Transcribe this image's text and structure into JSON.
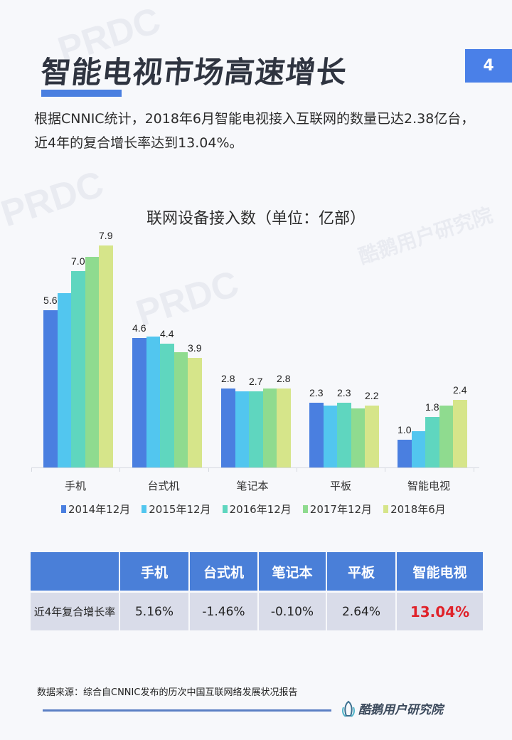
{
  "header": {
    "title": "智能电视市场高速增长",
    "page_number": "4"
  },
  "intro": {
    "text": "根据CNNIC统计，2018年6月智能电视接入互联网的数量已达2.38亿台，近4年的复合增长率达到13.04%。"
  },
  "watermarks": [
    "PRDC",
    "酷鹅用户研究院"
  ],
  "chart_data": {
    "type": "bar",
    "title": "联网设备接入数（单位：亿部）",
    "xlabel": "",
    "ylabel": "亿部",
    "ylim": [
      0,
      8.3
    ],
    "grid": false,
    "legend_position": "bottom",
    "categories": [
      "手机",
      "台式机",
      "笔记本",
      "平板",
      "智能电视"
    ],
    "series": [
      {
        "name": "2014年12月",
        "color": "#4a7fe0",
        "values": [
          5.6,
          4.6,
          2.8,
          2.3,
          1.0
        ],
        "labeled": [
          true,
          true,
          true,
          true,
          true
        ]
      },
      {
        "name": "2015年12月",
        "color": "#52c6ef",
        "values": [
          6.2,
          4.65,
          2.7,
          2.2,
          1.3
        ],
        "labeled": [
          false,
          false,
          false,
          false,
          false
        ]
      },
      {
        "name": "2016年12月",
        "color": "#5fd6bf",
        "values": [
          7.0,
          4.4,
          2.7,
          2.3,
          1.8
        ],
        "labeled": [
          true,
          true,
          true,
          true,
          true
        ]
      },
      {
        "name": "2017年12月",
        "color": "#8fdb8f",
        "values": [
          7.5,
          4.1,
          2.8,
          2.1,
          2.2
        ],
        "labeled": [
          false,
          false,
          false,
          false,
          false
        ]
      },
      {
        "name": "2018年6月",
        "color": "#d6e58a",
        "values": [
          7.9,
          3.9,
          2.8,
          2.2,
          2.4
        ],
        "labeled": [
          true,
          true,
          true,
          true,
          true
        ]
      }
    ],
    "data_labels": {
      "手机": [
        "5.6",
        "7.0",
        "7.9"
      ],
      "台式机": [
        "4.6",
        "4.4",
        "3.9"
      ],
      "笔记本": [
        "2.8",
        "2.7",
        "2.8"
      ],
      "平板": [
        "2.3",
        "2.3",
        "2.2"
      ],
      "智能电视": [
        "1.0",
        "1.8",
        "2.4"
      ]
    }
  },
  "table": {
    "headers": [
      "",
      "手机",
      "台式机",
      "笔记本",
      "平板",
      "智能电视"
    ],
    "row_label": "近4年复合增长率",
    "values": [
      "5.16%",
      "-1.46%",
      "-0.10%",
      "2.64%",
      "13.04%"
    ],
    "highlight_color": "#e0222a"
  },
  "footer": {
    "source": "数据来源：综合自CNNIC发布的历次中国互联网络发展状况报告",
    "logo_text": "酷鹅用户研究院"
  }
}
